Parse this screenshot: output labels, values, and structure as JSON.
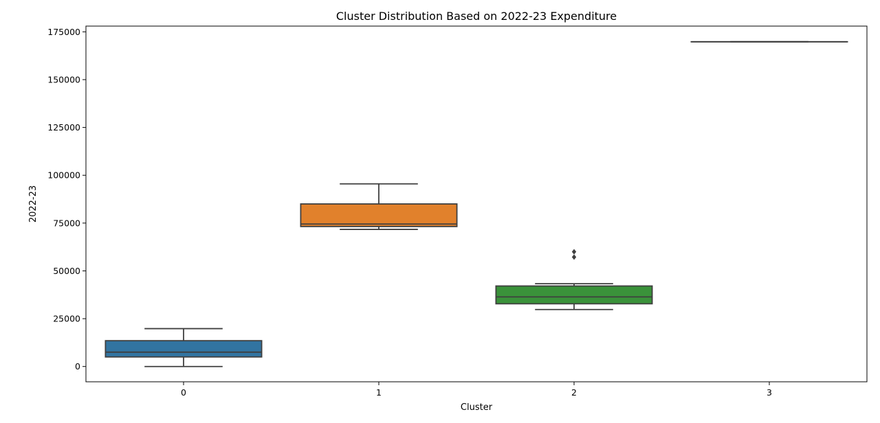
{
  "chart_data": {
    "type": "box",
    "title": "Cluster Distribution Based on 2022-23 Expenditure",
    "xlabel": "Cluster",
    "ylabel": "2022-23",
    "categories": [
      "0",
      "1",
      "2",
      "3"
    ],
    "ylim": [
      -8000,
      178000
    ],
    "yticks": [
      0,
      25000,
      50000,
      75000,
      100000,
      125000,
      150000,
      175000
    ],
    "grid": false,
    "boxes": [
      {
        "category": "0",
        "min": 0,
        "q1": 5000,
        "median": 7500,
        "q3": 13500,
        "max": 19800,
        "outliers": [],
        "color": "#3274a1"
      },
      {
        "category": "1",
        "min": 71700,
        "q1": 73200,
        "median": 74500,
        "q3": 85000,
        "max": 95500,
        "outliers": [],
        "color": "#e1812c"
      },
      {
        "category": "2",
        "min": 29800,
        "q1": 32800,
        "median": 36400,
        "q3": 42100,
        "max": 43300,
        "outliers": [
          57200,
          60000
        ],
        "color": "#3a923a"
      },
      {
        "category": "3",
        "min": 169800,
        "q1": 169800,
        "median": 169800,
        "q3": 169800,
        "max": 169800,
        "outliers": [],
        "color": "#c03d3e"
      }
    ]
  }
}
